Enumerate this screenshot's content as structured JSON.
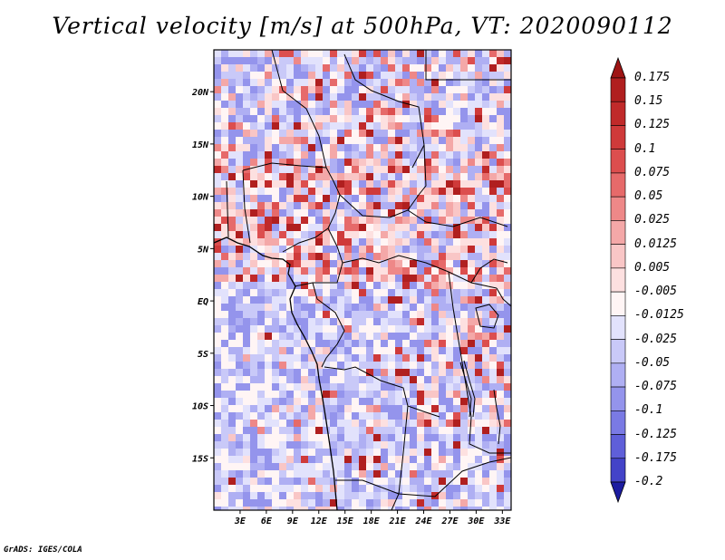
{
  "title": "Vertical velocity [m/s] at 500hPa, VT: 2020090112",
  "credit": "GrADS: IGES/COLA",
  "map": {
    "region": "Central Africa",
    "lon_range": [
      0,
      34
    ],
    "lat_range": [
      -20,
      24
    ],
    "lat_ticks": [
      {
        "value": 20,
        "label": "20N"
      },
      {
        "value": 15,
        "label": "15N"
      },
      {
        "value": 10,
        "label": "10N"
      },
      {
        "value": 5,
        "label": "5N"
      },
      {
        "value": 0,
        "label": "EQ"
      },
      {
        "value": -5,
        "label": "5S"
      },
      {
        "value": -10,
        "label": "10S"
      },
      {
        "value": -15,
        "label": "15S"
      }
    ],
    "lon_ticks": [
      {
        "value": 3,
        "label": "3E"
      },
      {
        "value": 6,
        "label": "6E"
      },
      {
        "value": 9,
        "label": "9E"
      },
      {
        "value": 12,
        "label": "12E"
      },
      {
        "value": 15,
        "label": "15E"
      },
      {
        "value": 18,
        "label": "18E"
      },
      {
        "value": 21,
        "label": "21E"
      },
      {
        "value": 24,
        "label": "24E"
      },
      {
        "value": 27,
        "label": "27E"
      },
      {
        "value": 30,
        "label": "30E"
      },
      {
        "value": 33,
        "label": "33E"
      }
    ]
  },
  "colorbar": {
    "levels": [
      {
        "label": "0.175",
        "color": "#b01f1f"
      },
      {
        "label": "0.15",
        "color": "#c02a2a"
      },
      {
        "label": "0.125",
        "color": "#cf3a3a"
      },
      {
        "label": "0.1",
        "color": "#dc4e4e"
      },
      {
        "label": "0.075",
        "color": "#e66a6a"
      },
      {
        "label": "0.05",
        "color": "#ee8888"
      },
      {
        "label": "0.025",
        "color": "#f4a8a8"
      },
      {
        "label": "0.0125",
        "color": "#f9c6c6"
      },
      {
        "label": "0.005",
        "color": "#fde0e0"
      },
      {
        "label": "-0.005",
        "color": "#fff5f5"
      },
      {
        "label": "-0.0125",
        "color": "#e2e2fc"
      },
      {
        "label": "-0.025",
        "color": "#c9c9f8"
      },
      {
        "label": "-0.05",
        "color": "#afaff3"
      },
      {
        "label": "-0.075",
        "color": "#9494ec"
      },
      {
        "label": "-0.1",
        "color": "#7a7ae4"
      },
      {
        "label": "-0.125",
        "color": "#5f5fd9"
      },
      {
        "label": "-0.175",
        "color": "#4343c8"
      },
      {
        "label": "-0.2",
        "color": "#2b2bb4"
      }
    ],
    "top_color": "#9e1414",
    "bottom_color": "#1c1ca0"
  }
}
